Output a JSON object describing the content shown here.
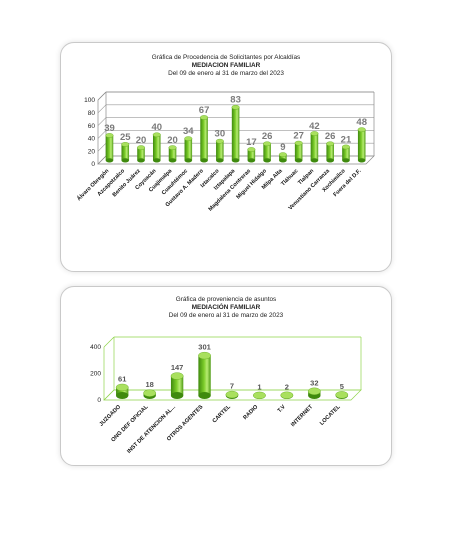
{
  "chart_data": [
    {
      "type": "bar",
      "title": "Gráfica de Procedencia de Solicitantes por Alcaldías",
      "subtitle": "MEDIACION FAMILIAR",
      "period": "Del  09 de enero  al  31 de marzo  del  2023",
      "categories": [
        "Álvaro Obregón",
        "Azcapotzalco",
        "Benito Juárez",
        "Coyoacán",
        "Cuajimalpa",
        "Cuauhtémoc",
        "Gustavo A. Madero",
        "Iztacalco",
        "Iztapalapa",
        "Magdalena Contreras",
        "Miguel Hidalgo",
        "Milpa Alta",
        "Tláhuac",
        "Tlalpan",
        "Venustiano Carranza",
        "Xochimilco",
        "Fuera del D.F."
      ],
      "values": [
        39,
        25,
        20,
        40,
        20,
        34,
        67,
        30,
        83,
        17,
        26,
        9,
        27,
        42,
        26,
        21,
        48
      ],
      "yticks": [
        0,
        20,
        40,
        60,
        80,
        100
      ],
      "ylim": [
        0,
        100
      ],
      "bar_color": "#7ccc2a",
      "grid": true
    },
    {
      "type": "bar",
      "title": "Gráfica de proveniencia de asuntos",
      "subtitle": "MEDIACIÓN FAMILIAR",
      "period": "Del  09 de enero al  31 de marzo  de  2023",
      "categories": [
        "JUZGADO",
        "ONG DEF OFICIAL",
        "INST DE ATENCION AL...",
        "OTROS AGENTES",
        "CARTEL",
        "RADIO",
        "T.V",
        "INTERNET",
        "LOCATEL"
      ],
      "values": [
        61,
        18,
        147,
        301,
        7,
        1,
        2,
        32,
        5
      ],
      "yticks": [
        0,
        200,
        400
      ],
      "ylim": [
        0,
        400
      ],
      "bar_color": "#7ccc2a",
      "grid": false
    }
  ]
}
